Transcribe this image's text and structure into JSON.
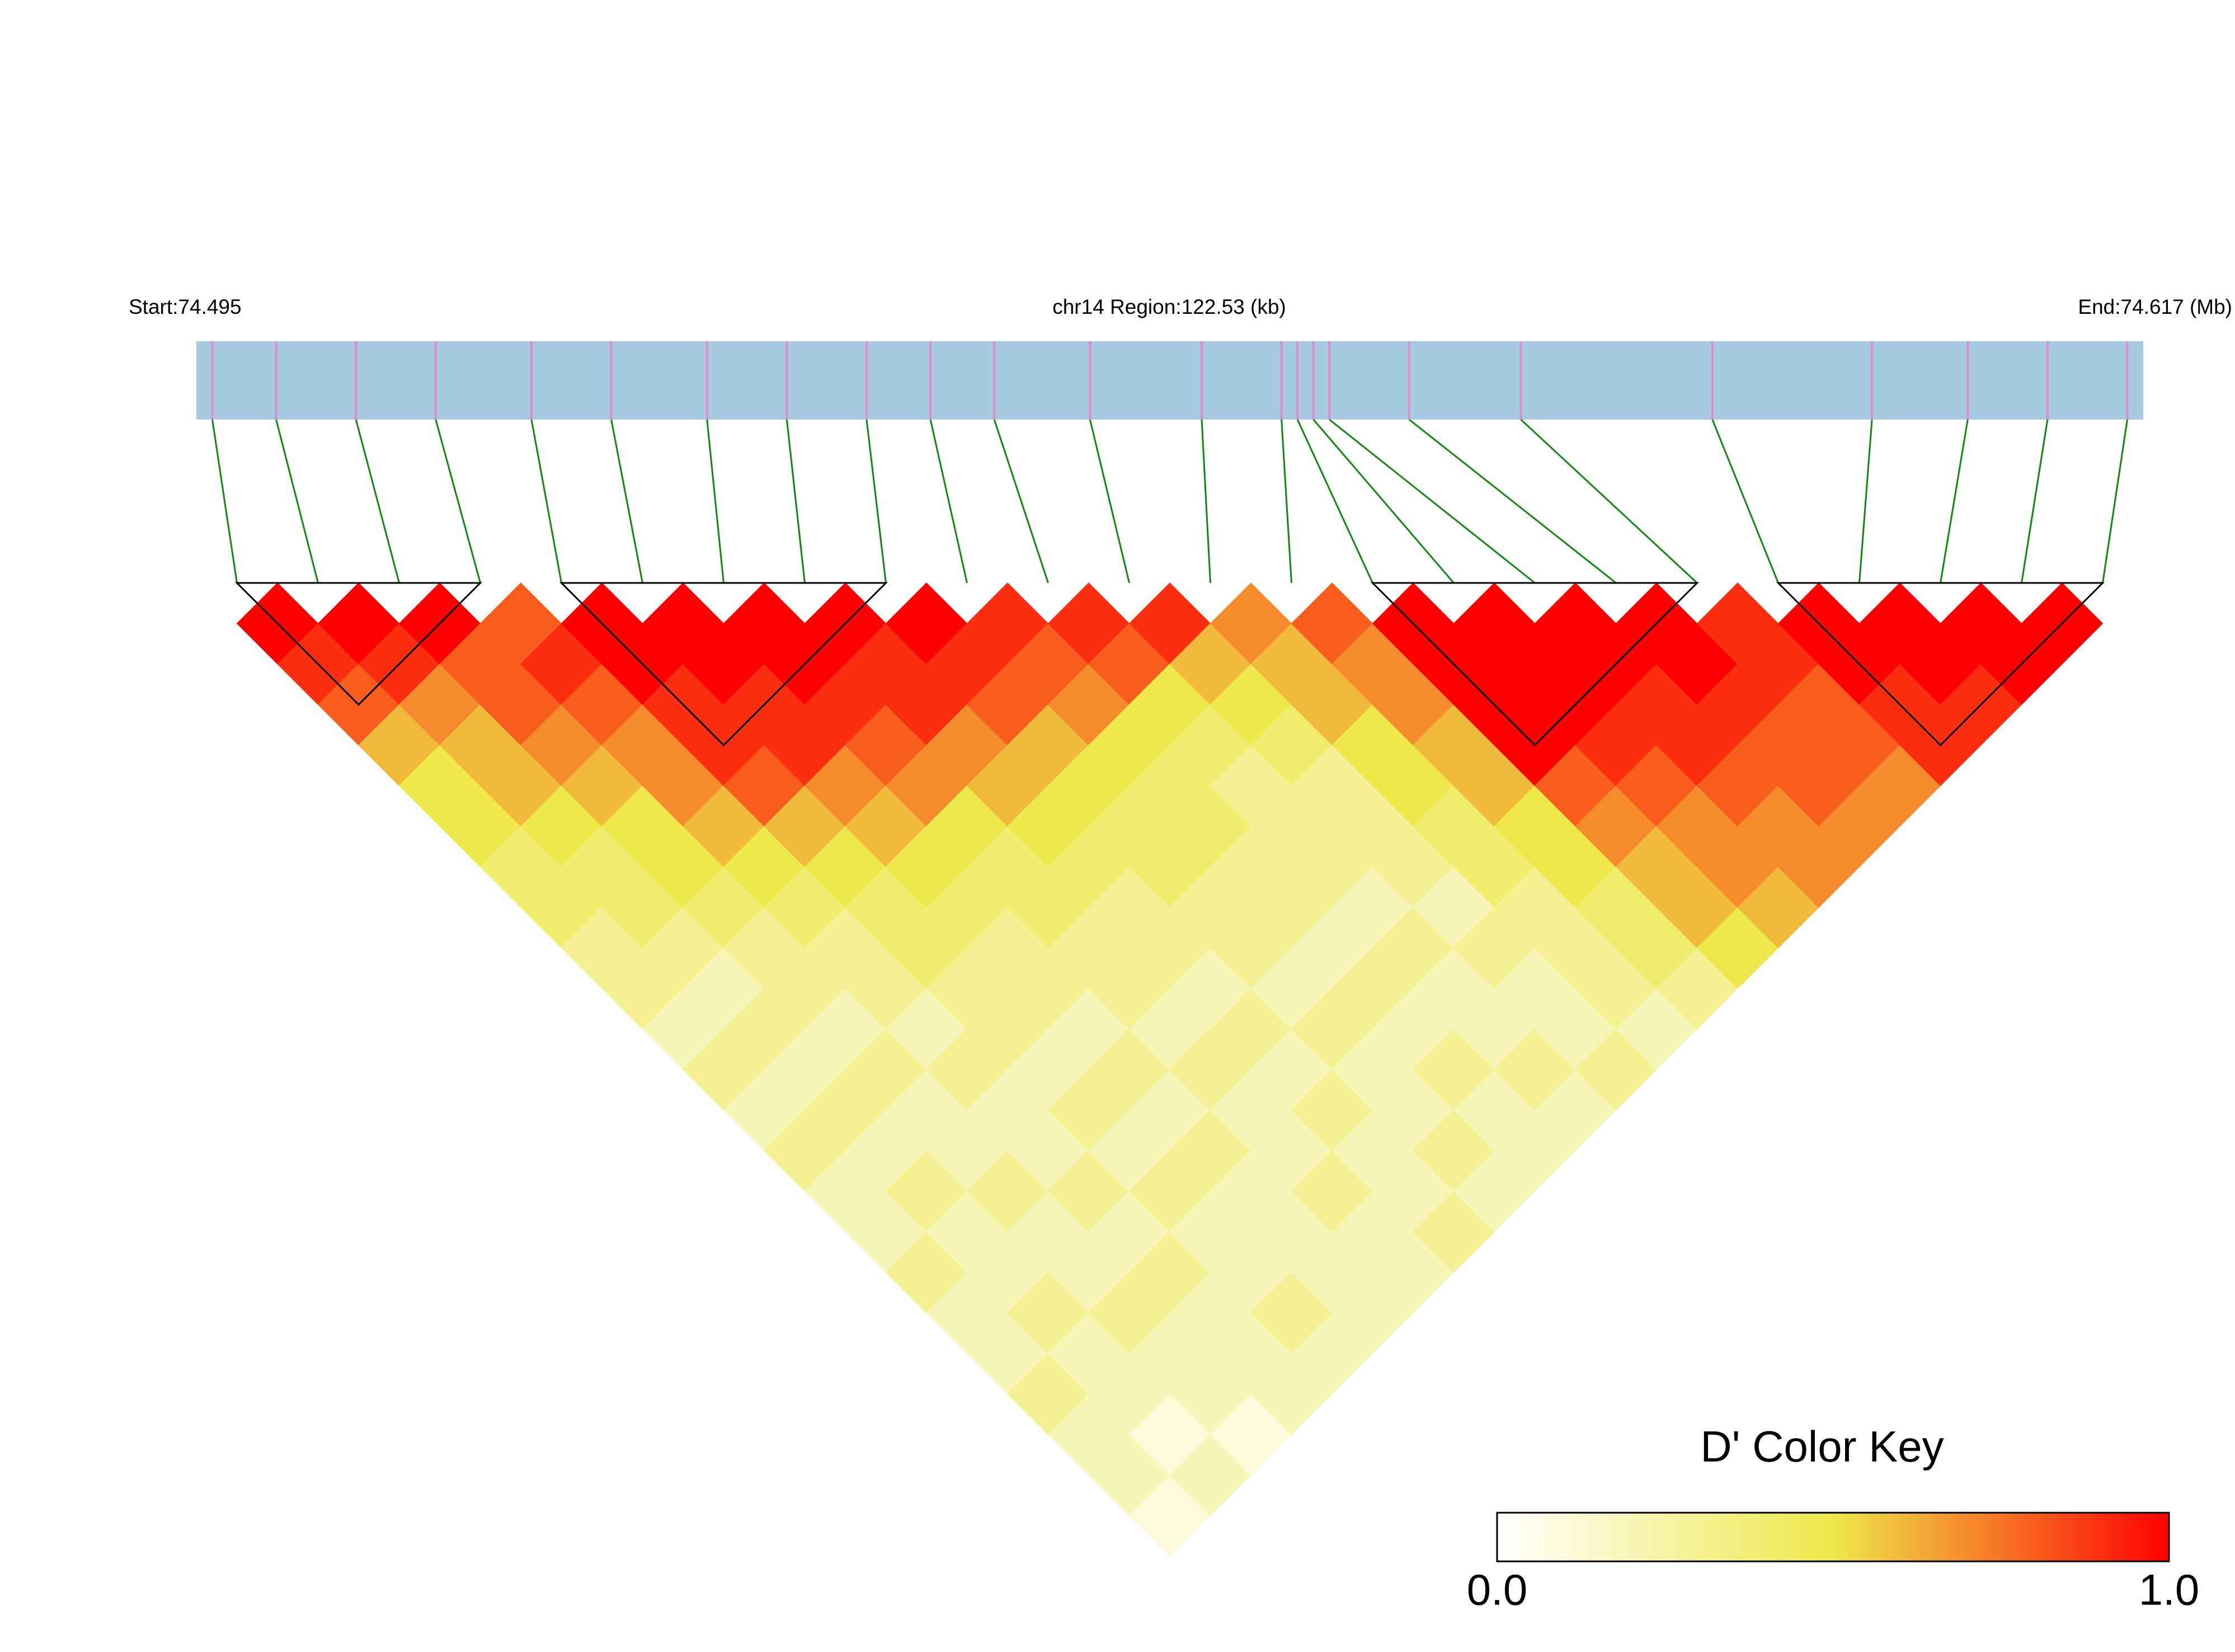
{
  "chart_data": {
    "type": "ld-heatmap",
    "start_label": "Start:74.495",
    "region_label": "chr14 Region:122.53 (kb)",
    "end_label": "End:74.617 (Mb)",
    "xlim": [
      74.495,
      74.617
    ],
    "positions": [
      74.496,
      74.5,
      74.505,
      74.51,
      74.516,
      74.521,
      74.527,
      74.532,
      74.537,
      74.541,
      74.545,
      74.551,
      74.558,
      74.563,
      74.564,
      74.565,
      74.566,
      74.571,
      74.578,
      74.59,
      74.6,
      74.606,
      74.611,
      74.616
    ],
    "dprime": [
      [
        1,
        0.9,
        0.8,
        0.6,
        0.5,
        0.5,
        0.4,
        0.4,
        0.3,
        0.3,
        0.2,
        0.3,
        0.2,
        0.3,
        0.2,
        0.2,
        0.3,
        0.2,
        0.2,
        0.3,
        0.2,
        0.2,
        0.1
      ],
      [
        1,
        0.9,
        0.7,
        0.6,
        0.6,
        0.5,
        0.4,
        0.4,
        0.3,
        0.2,
        0.3,
        0.2,
        0.3,
        0.2,
        0.3,
        0.2,
        0.2,
        0.3,
        0.2,
        0.2,
        0.1,
        0.2
      ],
      [
        1,
        0.8,
        0.8,
        0.7,
        0.6,
        0.5,
        0.5,
        0.4,
        0.3,
        0.3,
        0.2,
        0.3,
        0.2,
        0.2,
        0.3,
        0.2,
        0.2,
        0.3,
        0.2,
        0.2,
        0.1
      ],
      [
        0.8,
        0.9,
        0.8,
        0.7,
        0.7,
        0.6,
        0.5,
        0.4,
        0.3,
        0.3,
        0.2,
        0.3,
        0.2,
        0.2,
        0.3,
        0.2,
        0.3,
        0.2,
        0.2,
        0.2
      ],
      [
        1,
        1,
        0.9,
        0.9,
        0.8,
        0.6,
        0.5,
        0.4,
        0.4,
        0.3,
        0.3,
        0.2,
        0.3,
        0.2,
        0.3,
        0.2,
        0.2,
        0.3,
        0.2
      ],
      [
        1,
        1,
        0.9,
        0.9,
        0.7,
        0.6,
        0.5,
        0.4,
        0.3,
        0.3,
        0.2,
        0.3,
        0.2,
        0.3,
        0.2,
        0.2,
        0.2,
        0.2
      ],
      [
        1,
        1,
        0.9,
        0.8,
        0.7,
        0.5,
        0.4,
        0.4,
        0.3,
        0.3,
        0.2,
        0.3,
        0.2,
        0.2,
        0.3,
        0.2,
        0.2
      ],
      [
        1,
        0.9,
        0.9,
        0.7,
        0.6,
        0.5,
        0.4,
        0.3,
        0.3,
        0.2,
        0.3,
        0.2,
        0.3,
        0.2,
        0.2,
        0.3
      ],
      [
        1,
        0.9,
        0.8,
        0.6,
        0.5,
        0.4,
        0.4,
        0.3,
        0.3,
        0.2,
        0.3,
        0.2,
        0.2,
        0.3,
        0.2
      ],
      [
        0.9,
        0.8,
        0.7,
        0.5,
        0.4,
        0.4,
        0.3,
        0.3,
        0.2,
        0.3,
        0.2,
        0.3,
        0.2,
        0.2
      ],
      [
        0.9,
        0.8,
        0.5,
        0.4,
        0.3,
        0.3,
        0.3,
        0.2,
        0.3,
        0.2,
        0.2,
        0.3,
        0.2
      ],
      [
        0.9,
        0.6,
        0.5,
        0.4,
        0.3,
        0.3,
        0.3,
        0.2,
        0.3,
        0.2,
        0.2,
        0.3
      ],
      [
        0.7,
        0.6,
        0.6,
        0.5,
        0.5,
        0.4,
        0.4,
        0.3,
        0.3,
        0.3,
        0.2
      ],
      [
        0.8,
        0.7,
        0.7,
        0.6,
        0.6,
        0.5,
        0.5,
        0.4,
        0.4,
        0.3
      ],
      [
        1,
        1,
        1,
        1,
        0.8,
        0.7,
        0.6,
        0.6,
        0.5
      ],
      [
        1,
        1,
        1,
        0.9,
        0.8,
        0.7,
        0.7,
        0.6
      ],
      [
        1,
        1,
        0.9,
        0.9,
        0.8,
        0.7,
        0.7
      ],
      [
        1,
        1,
        0.9,
        0.8,
        0.8,
        0.7
      ],
      [
        0.9,
        0.9,
        0.8,
        0.8,
        0.7
      ],
      [
        1,
        1,
        0.9,
        0.9
      ],
      [
        1,
        1,
        0.9
      ],
      [
        1,
        1
      ],
      [
        1
      ]
    ],
    "blocks": [
      [
        0,
        3
      ],
      [
        4,
        8
      ],
      [
        14,
        18
      ],
      [
        19,
        23
      ]
    ],
    "colors": [
      "#ffffff",
      "#eee84a",
      "#ff0000"
    ],
    "bar_color": "#a6cbe0",
    "snp_color": "#e08ad0",
    "link_color": "#118811",
    "key_title": "D' Color Key",
    "clim": [
      0,
      1
    ],
    "key_ticks": [
      {
        "value": 0,
        "label": "0.0"
      },
      {
        "value": 1,
        "label": "1.0"
      }
    ]
  }
}
